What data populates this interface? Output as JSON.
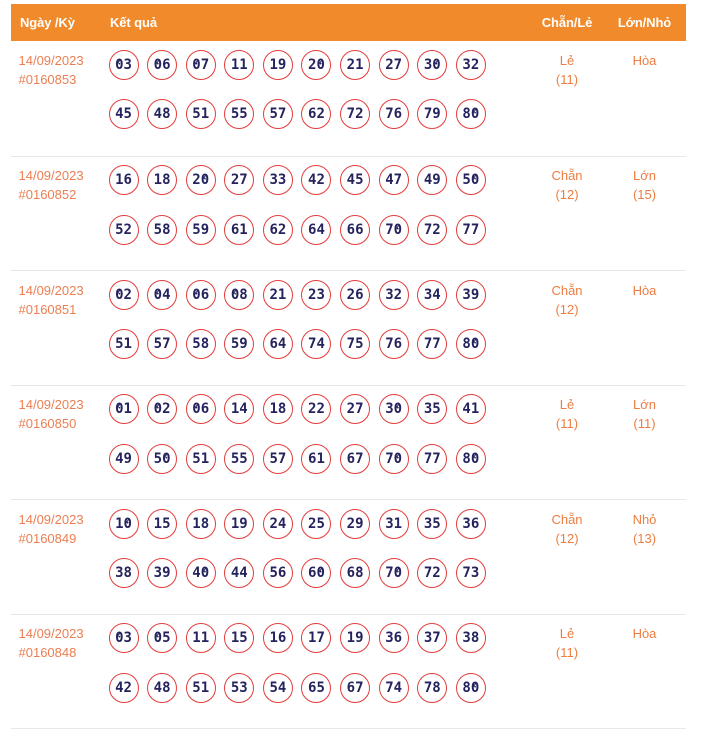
{
  "colors": {
    "header_bg": "#F08A2B",
    "header_fg": "#FFFFFF",
    "date_fg": "#EC7E52",
    "value_fg": "#ED7D40",
    "ball_border": "#E33C3B",
    "number_fg": "#25235E",
    "separator": "#E8E8E8",
    "page_bg": "#FFFFFF"
  },
  "header": {
    "col_date": "Ngày /Kỳ",
    "col_result": "Kết quả",
    "col_parity": "Chẵn/Lẻ",
    "col_size": "Lớn/Nhỏ"
  },
  "rows": [
    {
      "date": "14/09/2023",
      "draw_id": "#0160853",
      "numbers_line1": [
        "03",
        "06",
        "07",
        "11",
        "19",
        "20",
        "21",
        "27",
        "30",
        "32"
      ],
      "numbers_line2": [
        "45",
        "48",
        "51",
        "55",
        "57",
        "62",
        "72",
        "76",
        "79",
        "80"
      ],
      "parity": "Lẻ",
      "parity_count": "(11)",
      "size": "Hòa",
      "size_count": ""
    },
    {
      "date": "14/09/2023",
      "draw_id": "#0160852",
      "numbers_line1": [
        "16",
        "18",
        "20",
        "27",
        "33",
        "42",
        "45",
        "47",
        "49",
        "50"
      ],
      "numbers_line2": [
        "52",
        "58",
        "59",
        "61",
        "62",
        "64",
        "66",
        "70",
        "72",
        "77"
      ],
      "parity": "Chẵn",
      "parity_count": "(12)",
      "size": "Lớn",
      "size_count": "(15)"
    },
    {
      "date": "14/09/2023",
      "draw_id": "#0160851",
      "numbers_line1": [
        "02",
        "04",
        "06",
        "08",
        "21",
        "23",
        "26",
        "32",
        "34",
        "39"
      ],
      "numbers_line2": [
        "51",
        "57",
        "58",
        "59",
        "64",
        "74",
        "75",
        "76",
        "77",
        "80"
      ],
      "parity": "Chẵn",
      "parity_count": "(12)",
      "size": "Hòa",
      "size_count": ""
    },
    {
      "date": "14/09/2023",
      "draw_id": "#0160850",
      "numbers_line1": [
        "01",
        "02",
        "06",
        "14",
        "18",
        "22",
        "27",
        "30",
        "35",
        "41"
      ],
      "numbers_line2": [
        "49",
        "50",
        "51",
        "55",
        "57",
        "61",
        "67",
        "70",
        "77",
        "80"
      ],
      "parity": "Lẻ",
      "parity_count": "(11)",
      "size": "Lớn",
      "size_count": "(11)"
    },
    {
      "date": "14/09/2023",
      "draw_id": "#0160849",
      "numbers_line1": [
        "10",
        "15",
        "18",
        "19",
        "24",
        "25",
        "29",
        "31",
        "35",
        "36"
      ],
      "numbers_line2": [
        "38",
        "39",
        "40",
        "44",
        "56",
        "60",
        "68",
        "70",
        "72",
        "73"
      ],
      "parity": "Chẵn",
      "parity_count": "(12)",
      "size": "Nhỏ",
      "size_count": "(13)"
    },
    {
      "date": "14/09/2023",
      "draw_id": "#0160848",
      "numbers_line1": [
        "03",
        "05",
        "11",
        "15",
        "16",
        "17",
        "19",
        "36",
        "37",
        "38"
      ],
      "numbers_line2": [
        "42",
        "48",
        "51",
        "53",
        "54",
        "65",
        "67",
        "74",
        "78",
        "80"
      ],
      "parity": "Lẻ",
      "parity_count": "(11)",
      "size": "Hòa",
      "size_count": ""
    }
  ]
}
